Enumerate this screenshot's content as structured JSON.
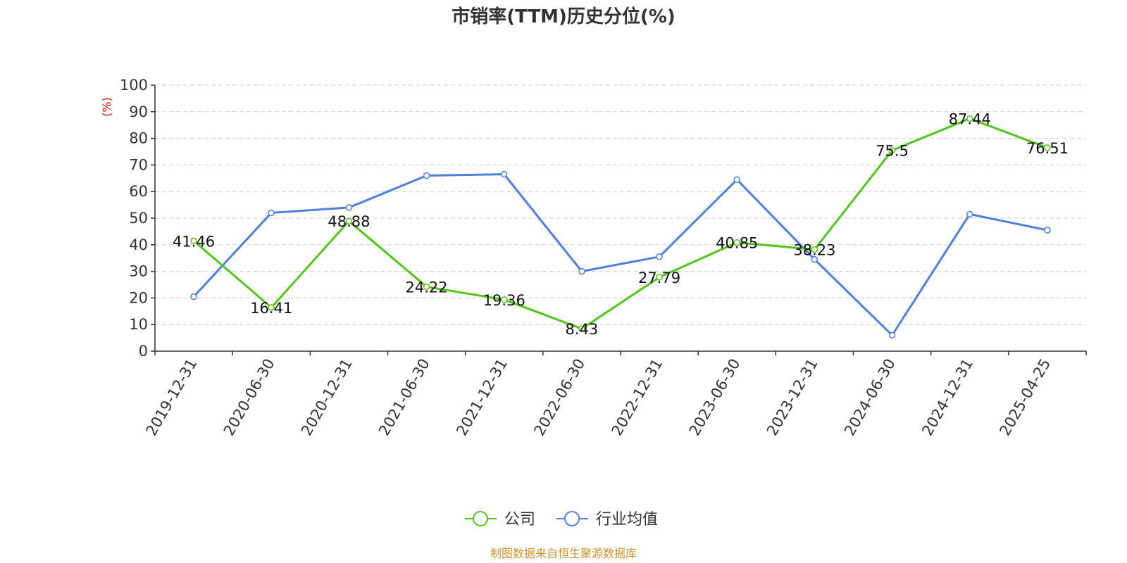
{
  "chart_data": {
    "type": "line",
    "title": "市销率(TTM)历史分位(%)",
    "ylabel": "(%)",
    "categories": [
      "2019-12-31",
      "2020-06-30",
      "2020-12-31",
      "2021-06-30",
      "2021-12-31",
      "2022-06-30",
      "2022-12-31",
      "2023-06-30",
      "2023-12-31",
      "2024-06-30",
      "2024-12-31",
      "2025-04-25"
    ],
    "yticks": [
      "0",
      "10",
      "20",
      "30",
      "40",
      "50",
      "60",
      "70",
      "80",
      "90",
      "100"
    ],
    "ylim": [
      0,
      100
    ],
    "grid": true,
    "legend_position": "bottom",
    "series": [
      {
        "name": "公司",
        "color": "#52c41a",
        "labels_shown": true,
        "values": [
          41.46,
          16.41,
          48.88,
          24.22,
          19.36,
          8.43,
          27.79,
          40.85,
          38.23,
          75.5,
          87.44,
          76.51
        ]
      },
      {
        "name": "行业均值",
        "color": "#4e7fdd",
        "labels_shown": false,
        "values": [
          20.5,
          52.0,
          54.0,
          66.0,
          66.5,
          30.0,
          35.5,
          64.5,
          34.5,
          6.0,
          51.5,
          45.5
        ]
      }
    ]
  },
  "source_text": "制图数据来自恒生聚源数据库",
  "colors": {
    "unit_label": "#e00000",
    "source": "#c8962e",
    "axis": "#333333",
    "grid": "#cccccc"
  }
}
